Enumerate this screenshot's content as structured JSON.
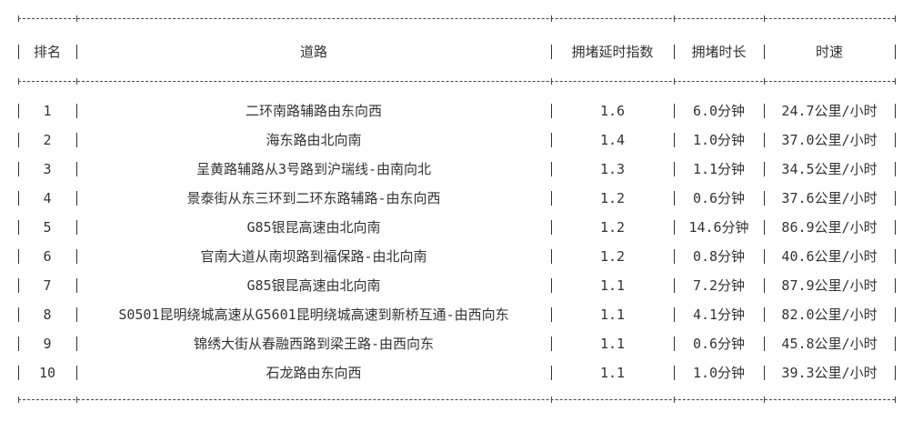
{
  "table": {
    "headers": [
      "排名",
      "道路",
      "拥堵延时指数",
      "拥堵时长",
      "时速"
    ],
    "rows": [
      [
        "1",
        "二环南路辅路由东向西",
        "1.6",
        "6.0分钟",
        "24.7公里/小时"
      ],
      [
        "2",
        "海东路由北向南",
        "1.4",
        "1.0分钟",
        "37.0公里/小时"
      ],
      [
        "3",
        "呈黄路辅路从3号路到沪瑞线-由南向北",
        "1.3",
        "1.1分钟",
        "34.5公里/小时"
      ],
      [
        "4",
        "景泰街从东三环到二环东路辅路-由东向西",
        "1.2",
        "0.6分钟",
        "37.6公里/小时"
      ],
      [
        "5",
        "G85银昆高速由北向南",
        "1.2",
        "14.6分钟",
        "86.9公里/小时"
      ],
      [
        "6",
        "官南大道从南坝路到福保路-由北向南",
        "1.2",
        "0.8分钟",
        "40.6公里/小时"
      ],
      [
        "7",
        "G85银昆高速由北向南",
        "1.1",
        "7.2分钟",
        "87.9公里/小时"
      ],
      [
        "8",
        "S0501昆明绕城高速从G5601昆明绕城高速到新桥互通-由西向东",
        "1.1",
        "4.1分钟",
        "82.0公里/小时"
      ],
      [
        "9",
        "锦绣大街从春融西路到梁王路-由西向东",
        "1.1",
        "0.6分钟",
        "45.8公里/小时"
      ],
      [
        "10",
        "石龙路由东向西",
        "1.1",
        "1.0分钟",
        "39.3公里/小时"
      ]
    ]
  }
}
